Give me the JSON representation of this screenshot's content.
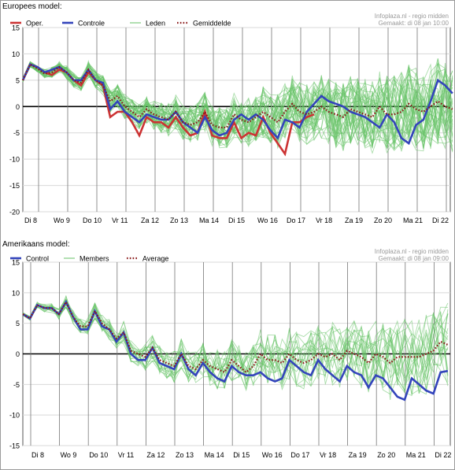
{
  "charts": [
    {
      "title": "Europees model:",
      "credit_line1": "Infoplaza.nl - regio midden",
      "credit_line2": "Gemaakt: di 08 jan 10:00"
    },
    {
      "title": "Amerikaans model:",
      "credit_line1": "Infoplaza.nl - regio midden",
      "credit_line2": "Gemaakt: di 08 jan 09:00"
    }
  ],
  "colors": {
    "oper": "#cc3333",
    "control": "#3344bb",
    "members": "#66c266",
    "average": "#8b1a1a",
    "zero_line": "#000000",
    "grid": "#bbbbbb"
  },
  "chart_data": [
    {
      "type": "line",
      "title": "Europees model:",
      "xlabel": "",
      "ylabel": "",
      "ylim": [
        -20,
        15
      ],
      "yticks": [
        -20,
        -15,
        -10,
        -5,
        0,
        5,
        10,
        15
      ],
      "day_labels": [
        "Di 8",
        "Wo 9",
        "Do 10",
        "Vr 11",
        "Za 12",
        "Zo 13",
        "Ma 14",
        "Di 15",
        "Wo 16",
        "Do 17",
        "Vr 18",
        "Za 19",
        "Zo 20",
        "Ma 21",
        "Di 22"
      ],
      "x_note": "x = days after first data point (Di 8 midday); 4 values per day",
      "legend_position": "top",
      "grid": true,
      "series": [
        {
          "name": "Oper.",
          "role": "oper",
          "x": [
            0,
            0.25,
            0.5,
            0.75,
            1,
            1.25,
            1.5,
            1.75,
            2,
            2.25,
            2.5,
            2.75,
            3,
            3.25,
            3.5,
            3.75,
            4,
            4.25,
            4.5,
            4.75,
            5,
            5.25,
            5.5,
            5.75,
            6,
            6.25,
            6.5,
            6.75,
            7,
            7.25,
            7.5,
            7.75,
            8,
            8.25,
            8.5,
            8.75,
            9,
            9.25,
            9.5,
            9.75,
            10
          ],
          "values": [
            5,
            8,
            7.5,
            6.5,
            6,
            7,
            6.5,
            5,
            4,
            6.5,
            5,
            4,
            -2,
            -1,
            -1,
            -3,
            -5.5,
            -2,
            -3,
            -3,
            -4,
            -2,
            -4,
            -5.5,
            -5,
            -1,
            -5.5,
            -6,
            -6,
            -3,
            -6,
            -5,
            -5.5,
            -2,
            -5,
            -7,
            -9,
            -3,
            -3,
            -2,
            -1.5
          ]
        },
        {
          "name": "Controle",
          "role": "control",
          "x": [
            0,
            0.25,
            0.5,
            0.75,
            1,
            1.25,
            1.5,
            1.75,
            2,
            2.25,
            2.5,
            2.75,
            3,
            3.25,
            3.5,
            3.75,
            4,
            4.25,
            4.5,
            4.75,
            5,
            5.25,
            5.5,
            5.75,
            6,
            6.25,
            6.5,
            6.75,
            7,
            7.25,
            7.5,
            7.75,
            8,
            8.25,
            8.5,
            8.75,
            9,
            9.25,
            9.5,
            9.75,
            10,
            10.25,
            10.5,
            10.75,
            11,
            11.25,
            11.5,
            11.75,
            12,
            12.25,
            12.5,
            12.75,
            13,
            13.25,
            13.5,
            13.75,
            14,
            14.25,
            14.5,
            14.75
          ],
          "values": [
            5,
            8,
            7.5,
            6.5,
            7,
            7.5,
            6.5,
            5,
            5,
            7,
            5,
            4.5,
            -0.5,
            1,
            -1,
            -2,
            -3,
            -1.5,
            -2,
            -2.5,
            -2.5,
            -1,
            -3,
            -4,
            -5,
            -2,
            -4.5,
            -5.5,
            -5,
            -2.5,
            -1.5,
            -2.5,
            -1.5,
            -2.5,
            -4.5,
            -6,
            -2.5,
            -3,
            -4,
            -1,
            0.5,
            2,
            1,
            0.5,
            0,
            -1,
            -1.5,
            -2,
            -3,
            -4,
            -1.5,
            -3,
            -6,
            -7,
            -3.5,
            -2.5,
            1,
            5,
            4,
            2.5
          ]
        },
        {
          "name": "Gemiddelde",
          "role": "average",
          "x": [
            0,
            0.25,
            0.5,
            0.75,
            1,
            1.25,
            1.5,
            1.75,
            2,
            2.25,
            2.5,
            2.75,
            3,
            3.25,
            3.5,
            3.75,
            4,
            4.25,
            4.5,
            4.75,
            5,
            5.25,
            5.5,
            5.75,
            6,
            6.25,
            6.5,
            6.75,
            7,
            7.25,
            7.5,
            7.75,
            8,
            8.25,
            8.5,
            8.75,
            9,
            9.25,
            9.5,
            9.75,
            10,
            10.25,
            10.5,
            10.75,
            11,
            11.25,
            11.5,
            11.75,
            12,
            12.25,
            12.5,
            12.75,
            13,
            13.25,
            13.5,
            13.75,
            14,
            14.25,
            14.5,
            14.75
          ],
          "values": [
            5,
            8,
            7.2,
            6.2,
            6.5,
            7.5,
            6.5,
            5,
            4.5,
            7,
            5,
            4,
            1,
            2,
            0,
            -1,
            -2,
            -0.5,
            -1.5,
            -2,
            -2.5,
            -1,
            -3,
            -3.5,
            -3,
            -1,
            -3.5,
            -4,
            -4,
            -1.5,
            -2.5,
            -3,
            -2,
            -1,
            -2,
            -3,
            -1,
            0.5,
            -1,
            -1.5,
            -1,
            0,
            -1,
            -1.5,
            -2,
            -0.5,
            -1,
            -1.5,
            -2,
            0,
            -1.5,
            -1.5,
            -1,
            0.5,
            -0.5,
            -1,
            0,
            1,
            0,
            -0.5
          ]
        }
      ],
      "members_legend": "Leden",
      "members_count": 40
    },
    {
      "type": "line",
      "title": "Amerikaans model:",
      "xlabel": "",
      "ylabel": "",
      "ylim": [
        -15,
        15
      ],
      "yticks": [
        -15,
        -10,
        -5,
        0,
        5,
        10,
        15
      ],
      "day_labels": [
        "Di 8",
        "Wo 9",
        "Do 10",
        "Vr 11",
        "Za 12",
        "Zo 13",
        "Ma 14",
        "Di 15",
        "Wo 16",
        "Do 17",
        "Vr 18",
        "Za 19",
        "Zo 20",
        "Ma 21",
        "Di 22"
      ],
      "x_note": "x = days after first data point (Di 8 early); 4 values per day",
      "legend_position": "top",
      "grid": true,
      "series": [
        {
          "name": "Control",
          "role": "control",
          "x": [
            0,
            0.25,
            0.5,
            0.75,
            1,
            1.25,
            1.5,
            1.75,
            2,
            2.25,
            2.5,
            2.75,
            3,
            3.25,
            3.5,
            3.75,
            4,
            4.25,
            4.5,
            4.75,
            5,
            5.25,
            5.5,
            5.75,
            6,
            6.25,
            6.5,
            6.75,
            7,
            7.25,
            7.5,
            7.75,
            8,
            8.25,
            8.5,
            8.75,
            9,
            9.25,
            9.5,
            9.75,
            10,
            10.25,
            10.5,
            10.75,
            11,
            11.25,
            11.5,
            11.75,
            12,
            12.25,
            12.5,
            12.75,
            13,
            13.25,
            13.5,
            13.75,
            14,
            14.25,
            14.5,
            14.75
          ],
          "values": [
            6.5,
            5.8,
            8,
            7.5,
            7.5,
            6.5,
            8.5,
            6,
            4,
            4,
            7,
            4.5,
            4,
            2,
            3.5,
            0,
            -1,
            -1,
            1,
            -1.5,
            -2,
            -2.5,
            0,
            -2.5,
            -3.5,
            -1.5,
            -3,
            -4,
            -4.5,
            -2,
            -3,
            -3.5,
            -3.5,
            -3,
            -4,
            -4.5,
            -4,
            -1,
            -2,
            -3,
            -3.5,
            -1,
            -2.5,
            -3.5,
            -4.5,
            -2,
            -3,
            -3.5,
            -5.5,
            -3.5,
            -4,
            -5.5,
            -7,
            -7.5,
            -4,
            -5,
            -6,
            -6.5,
            -3,
            -2.8
          ]
        },
        {
          "name": "Average",
          "role": "average",
          "x": [
            0,
            0.25,
            0.5,
            0.75,
            1,
            1.25,
            1.5,
            1.75,
            2,
            2.25,
            2.5,
            2.75,
            3,
            3.25,
            3.5,
            3.75,
            4,
            4.25,
            4.5,
            4.75,
            5,
            5.25,
            5.5,
            5.75,
            6,
            6.25,
            6.5,
            6.75,
            7,
            7.25,
            7.5,
            7.75,
            8,
            8.25,
            8.5,
            8.75,
            9,
            9.25,
            9.5,
            9.75,
            10,
            10.25,
            10.5,
            10.75,
            11,
            11.25,
            11.5,
            11.75,
            12,
            12.25,
            12.5,
            12.75,
            13,
            13.25,
            13.5,
            13.75,
            14,
            14.25,
            14.5,
            14.75
          ],
          "values": [
            6.5,
            5.8,
            8,
            7.5,
            7.5,
            6.5,
            8.5,
            6,
            4.5,
            4.5,
            7,
            5,
            4,
            2.5,
            3.5,
            0.5,
            0,
            -0.5,
            1,
            -1,
            -1.5,
            -2,
            0,
            -2,
            -2.5,
            -1,
            -2,
            -2.5,
            -3,
            -1,
            -2,
            -3,
            -2,
            0,
            -1,
            -1,
            -1.5,
            0,
            -1,
            -1.5,
            -1,
            0,
            -0.5,
            0,
            -1,
            0.5,
            0,
            -0.5,
            -1.5,
            0,
            -0.5,
            -1.5,
            -0.5,
            -0.5,
            -0.5,
            -0.5,
            0,
            0.5,
            2,
            1.5
          ]
        }
      ],
      "members_legend": "Members",
      "members_count": 20
    }
  ]
}
